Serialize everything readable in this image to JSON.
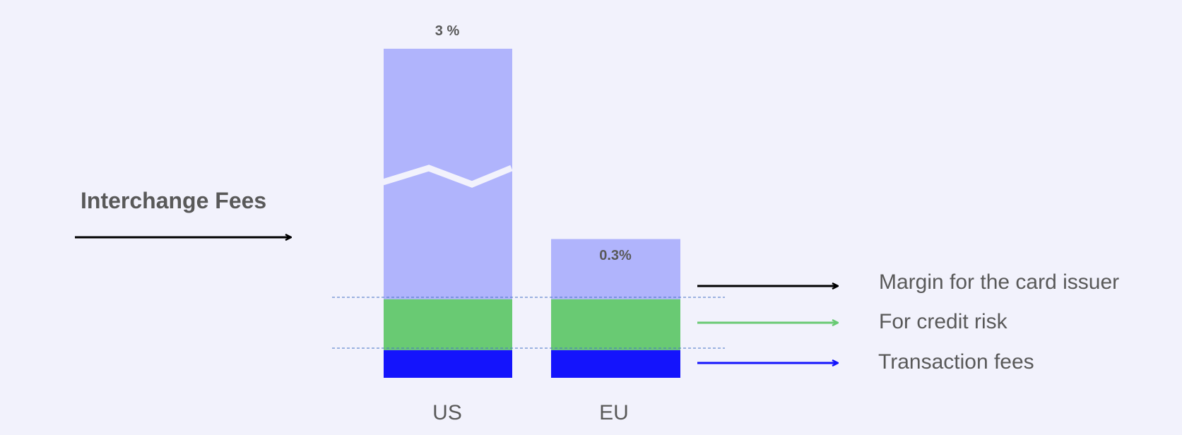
{
  "chart_data": {
    "type": "bar",
    "stacked": true,
    "axis_break_on": "US",
    "categories": [
      "US",
      "EU"
    ],
    "totals": [
      {
        "category": "US",
        "label": "3 %"
      },
      {
        "category": "EU",
        "label": "0.3%"
      }
    ],
    "series": [
      {
        "name": "Transaction fees",
        "color": "#1414fc",
        "values": [
          0.06,
          0.06
        ]
      },
      {
        "name": "For credit risk",
        "color": "#69ca73",
        "values": [
          0.11,
          0.11
        ]
      },
      {
        "name": "Margin for the card issuer",
        "color": "#b0b4fc",
        "values": [
          2.83,
          0.13
        ]
      }
    ],
    "legend_placement": "right",
    "annotations": [
      {
        "text": "Interchange Fees",
        "arrow": "right",
        "arrow_color": "#000000"
      }
    ]
  }
}
